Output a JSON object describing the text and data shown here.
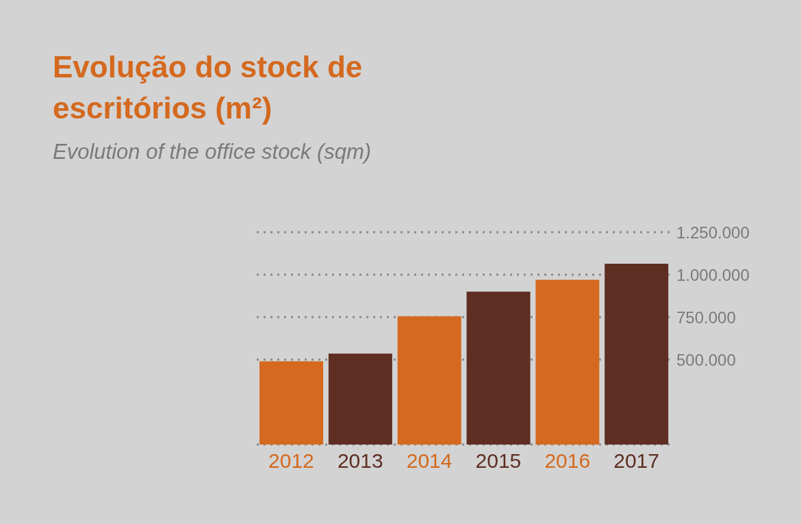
{
  "chart_data": {
    "type": "bar",
    "title": "Evolução do stock de escritórios (m²)",
    "subtitle": "Evolution of the office stock (sqm)",
    "categories": [
      "2012",
      "2013",
      "2014",
      "2015",
      "2016",
      "2017"
    ],
    "values": [
      490000,
      535000,
      755000,
      900000,
      970000,
      1065000
    ],
    "colors": [
      "#d4691f",
      "#5e2e22",
      "#d4691f",
      "#5e2e22",
      "#d4691f",
      "#5e2e22"
    ],
    "ylim": [
      0,
      1250000
    ],
    "yticks": [
      {
        "value": 500000,
        "label": "500.000"
      },
      {
        "value": 750000,
        "label": "750.000"
      },
      {
        "value": 1000000,
        "label": "1.000.000"
      },
      {
        "value": 1250000,
        "label": "1.250.000"
      }
    ],
    "grid": "y"
  }
}
